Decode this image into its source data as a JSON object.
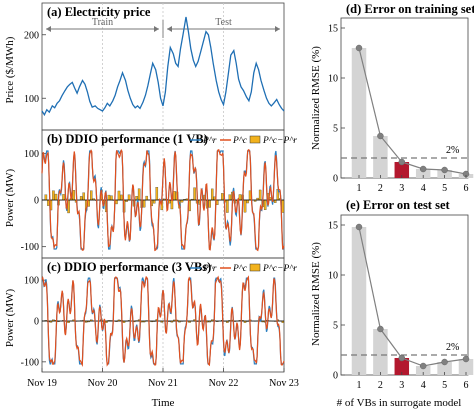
{
  "chart_data": [
    {
      "id": "a",
      "type": "line",
      "title": "(a) Electricity price",
      "ylabel": "Price ($/MWh)",
      "ylim": [
        50,
        250
      ],
      "yticks": [
        100,
        200
      ],
      "x_range": [
        "Nov 19",
        "Nov 23"
      ],
      "regions": [
        {
          "label": "Train",
          "from": 0,
          "to": 2
        },
        {
          "label": "Test",
          "from": 2,
          "to": 4
        }
      ],
      "series": [
        {
          "color": "#1f6fb4",
          "x": [
            0,
            0.04,
            0.08,
            0.12,
            0.17,
            0.21,
            0.25,
            0.29,
            0.33,
            0.38,
            0.42,
            0.46,
            0.5,
            0.54,
            0.58,
            0.62,
            0.67,
            0.71,
            0.75,
            0.79,
            0.83,
            0.88,
            0.92,
            0.96,
            1,
            1.04,
            1.08,
            1.12,
            1.17,
            1.21,
            1.25,
            1.29,
            1.33,
            1.38,
            1.42,
            1.46,
            1.5,
            1.54,
            1.58,
            1.62,
            1.67,
            1.71,
            1.75,
            1.79,
            1.83,
            1.88,
            1.92,
            1.96,
            2,
            2.04,
            2.08,
            2.12,
            2.17,
            2.21,
            2.25,
            2.29,
            2.33,
            2.38,
            2.42,
            2.46,
            2.5,
            2.54,
            2.58,
            2.62,
            2.67,
            2.71,
            2.75,
            2.79,
            2.83,
            2.88,
            2.92,
            2.96,
            3,
            3.04,
            3.08,
            3.12,
            3.17,
            3.21,
            3.25,
            3.29,
            3.33,
            3.38,
            3.42,
            3.46,
            3.5,
            3.54,
            3.58,
            3.62,
            3.67,
            3.71,
            3.75,
            3.79,
            3.83,
            3.88,
            3.92,
            3.96,
            4
          ],
          "values": [
            80,
            74,
            82,
            78,
            88,
            85,
            92,
            96,
            104,
            112,
            118,
            122,
            125,
            116,
            108,
            118,
            128,
            122,
            110,
            95,
            86,
            88,
            84,
            82,
            80,
            85,
            92,
            88,
            96,
            105,
            118,
            128,
            140,
            128,
            112,
            100,
            90,
            85,
            88,
            84,
            94,
            105,
            120,
            138,
            155,
            145,
            125,
            100,
            88,
            110,
            150,
            180,
            170,
            155,
            150,
            178,
            200,
            228,
            205,
            178,
            160,
            150,
            158,
            172,
            190,
            205,
            200,
            180,
            155,
            128,
            110,
            98,
            90,
            110,
            138,
            168,
            175,
            155,
            130,
            118,
            112,
            102,
            96,
            110,
            140,
            155,
            145,
            128,
            112,
            100,
            92,
            88,
            92,
            98,
            90,
            84,
            80
          ]
        }
      ]
    },
    {
      "id": "b",
      "type": "line",
      "title": "(b) DDIO performance (1 VB)",
      "ylabel": "Power (MW)",
      "ylim": [
        -120,
        120
      ],
      "yticks": [
        -100,
        0,
        100
      ],
      "legend": [
        "P^r",
        "P^c",
        "P^c−P^r"
      ],
      "series": [
        {
          "name": "P^r",
          "color": "#2a7fc0"
        },
        {
          "name": "P^c",
          "color": "#e0501f"
        },
        {
          "name": "P^c−P^r",
          "color": "#f2b21c",
          "type": "bar"
        }
      ]
    },
    {
      "id": "c",
      "type": "line",
      "title": "(c) DDIO performance (3 VBs)",
      "ylabel": "Power (MW)",
      "ylim": [
        -120,
        120
      ],
      "yticks": [
        -100,
        0,
        100
      ],
      "xticks": [
        "Nov 19",
        "Nov 20",
        "Nov 21",
        "Nov 22",
        "Nov 23"
      ],
      "xlabel": "Time",
      "legend": [
        "P^r",
        "P^c",
        "P^c−P^r"
      ],
      "series": [
        {
          "name": "P^r",
          "color": "#2a7fc0"
        },
        {
          "name": "P^c",
          "color": "#e0501f"
        },
        {
          "name": "P^c−P^r",
          "color": "#f2b21c",
          "type": "bar"
        }
      ]
    },
    {
      "id": "d",
      "type": "bar",
      "title": "(d) Error on training set",
      "ylabel": "Normalized RMSE (%)",
      "categories": [
        "1",
        "2",
        "3",
        "4",
        "5",
        "6"
      ],
      "values": [
        13.0,
        4.2,
        1.6,
        0.9,
        0.8,
        0.4
      ],
      "highlight_index": 2,
      "reference_line": {
        "value": 2,
        "label": "2%"
      },
      "ylim": [
        0,
        16
      ],
      "yticks": [
        0,
        5,
        10,
        15
      ]
    },
    {
      "id": "e",
      "type": "bar",
      "title": "(e) Error on test set",
      "ylabel": "Normalized RMSE (%)",
      "xlabel": "# of VBs in surrogate model",
      "categories": [
        "1",
        "2",
        "3",
        "4",
        "5",
        "6"
      ],
      "values": [
        14.8,
        4.6,
        1.7,
        0.9,
        1.3,
        1.6
      ],
      "highlight_index": 2,
      "reference_line": {
        "value": 2,
        "label": "2%"
      },
      "ylim": [
        0,
        16
      ],
      "yticks": [
        0,
        5,
        10,
        15
      ]
    }
  ],
  "colors": {
    "price": "#1f6fb4",
    "pr": "#2a7fc0",
    "pc": "#e0501f",
    "diff": "#f2b21c",
    "bar": "#d4d4d4",
    "bar_highlight": "#b3182e",
    "marker": "#808080"
  }
}
